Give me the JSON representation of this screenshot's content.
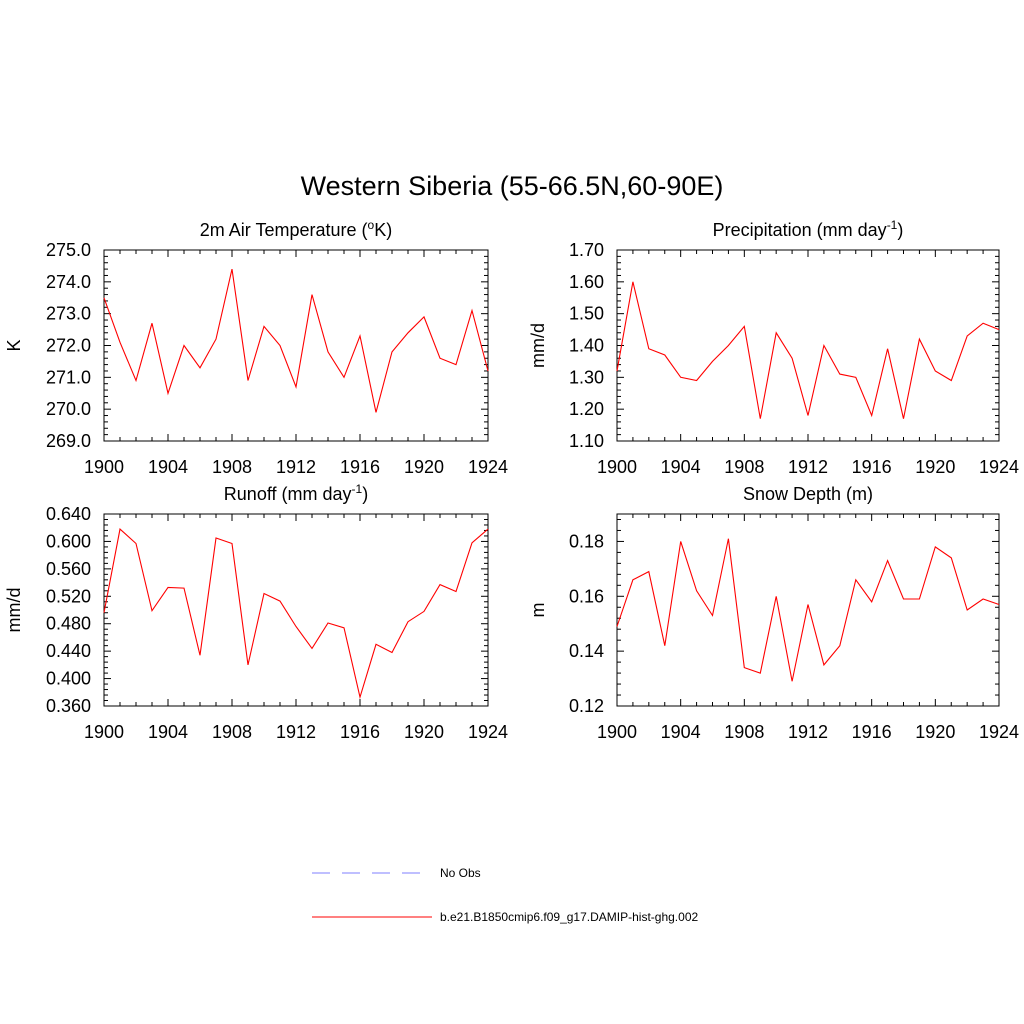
{
  "title": "Western Siberia (55-66.5N,60-90E)",
  "colors": {
    "model": "#ff0000",
    "obs": "#9999ff",
    "axis": "#000000"
  },
  "legend": {
    "obs_label": "No Obs",
    "model_label": "b.e21.B1850cmip6.f09_g17.DAMIP-hist-ghg.002"
  },
  "chart_data": [
    {
      "type": "line",
      "title_parts": [
        "2m Air Temperature (",
        "o",
        "K)"
      ],
      "ylabel": "K",
      "xlim": [
        1900,
        1924
      ],
      "ylim": [
        269.0,
        275.0
      ],
      "yticks": [
        269.0,
        270.0,
        271.0,
        272.0,
        273.0,
        274.0,
        275.0
      ],
      "yticklabels": [
        "269.0",
        "270.0",
        "271.0",
        "272.0",
        "273.0",
        "274.0",
        "275.0"
      ],
      "xticks": [
        1900,
        1904,
        1908,
        1912,
        1916,
        1920,
        1924
      ],
      "xticklabels": [
        "1900",
        "1904",
        "1908",
        "1912",
        "1916",
        "1920",
        "1924"
      ],
      "x": [
        1900,
        1901,
        1902,
        1903,
        1904,
        1905,
        1906,
        1907,
        1908,
        1909,
        1910,
        1911,
        1912,
        1913,
        1914,
        1915,
        1916,
        1917,
        1918,
        1919,
        1920,
        1921,
        1922,
        1923,
        1924
      ],
      "y": [
        273.5,
        272.1,
        270.9,
        272.7,
        270.5,
        272.0,
        271.3,
        272.2,
        274.4,
        270.9,
        272.6,
        272.0,
        270.7,
        273.6,
        271.8,
        271.0,
        272.3,
        269.9,
        271.8,
        272.4,
        272.9,
        271.6,
        271.4,
        273.1,
        271.2
      ]
    },
    {
      "type": "line",
      "title_parts": [
        "Precipitation (mm day",
        "-1",
        ")"
      ],
      "ylabel": "mm/d",
      "xlim": [
        1900,
        1924
      ],
      "ylim": [
        1.1,
        1.7
      ],
      "yticks": [
        1.1,
        1.2,
        1.3,
        1.4,
        1.5,
        1.6,
        1.7
      ],
      "yticklabels": [
        "1.10",
        "1.20",
        "1.30",
        "1.40",
        "1.50",
        "1.60",
        "1.70"
      ],
      "xticks": [
        1900,
        1904,
        1908,
        1912,
        1916,
        1920,
        1924
      ],
      "xticklabels": [
        "1900",
        "1904",
        "1908",
        "1912",
        "1916",
        "1920",
        "1924"
      ],
      "x": [
        1900,
        1901,
        1902,
        1903,
        1904,
        1905,
        1906,
        1907,
        1908,
        1909,
        1910,
        1911,
        1912,
        1913,
        1914,
        1915,
        1916,
        1917,
        1918,
        1919,
        1920,
        1921,
        1922,
        1923,
        1924
      ],
      "y": [
        1.32,
        1.6,
        1.39,
        1.37,
        1.3,
        1.29,
        1.35,
        1.4,
        1.46,
        1.17,
        1.44,
        1.36,
        1.18,
        1.4,
        1.31,
        1.3,
        1.18,
        1.39,
        1.17,
        1.42,
        1.32,
        1.29,
        1.43,
        1.47,
        1.45
      ]
    },
    {
      "type": "line",
      "title_parts": [
        "Runoff (mm day",
        "-1",
        ")"
      ],
      "ylabel": "mm/d",
      "xlim": [
        1900,
        1924
      ],
      "ylim": [
        0.36,
        0.64
      ],
      "yticks": [
        0.36,
        0.4,
        0.44,
        0.48,
        0.52,
        0.56,
        0.6,
        0.64
      ],
      "yticklabels": [
        "0.360",
        "0.400",
        "0.440",
        "0.480",
        "0.520",
        "0.560",
        "0.600",
        "0.640"
      ],
      "xticks": [
        1900,
        1904,
        1908,
        1912,
        1916,
        1920,
        1924
      ],
      "xticklabels": [
        "1900",
        "1904",
        "1908",
        "1912",
        "1916",
        "1920",
        "1924"
      ],
      "x": [
        1900,
        1901,
        1902,
        1903,
        1904,
        1905,
        1906,
        1907,
        1908,
        1909,
        1910,
        1911,
        1912,
        1913,
        1914,
        1915,
        1916,
        1917,
        1918,
        1919,
        1920,
        1921,
        1922,
        1923,
        1924
      ],
      "y": [
        0.496,
        0.618,
        0.597,
        0.499,
        0.533,
        0.532,
        0.434,
        0.605,
        0.597,
        0.42,
        0.524,
        0.513,
        0.476,
        0.444,
        0.481,
        0.474,
        0.373,
        0.45,
        0.438,
        0.483,
        0.498,
        0.537,
        0.527,
        0.598,
        0.618
      ]
    },
    {
      "type": "line",
      "title_parts": [
        "Snow Depth (m)"
      ],
      "ylabel": "m",
      "xlim": [
        1900,
        1924
      ],
      "ylim": [
        0.12,
        0.19
      ],
      "yticks": [
        0.12,
        0.14,
        0.16,
        0.18
      ],
      "yticklabels": [
        "0.12",
        "0.14",
        "0.16",
        "0.18"
      ],
      "xticks": [
        1900,
        1904,
        1908,
        1912,
        1916,
        1920,
        1924
      ],
      "xticklabels": [
        "1900",
        "1904",
        "1908",
        "1912",
        "1916",
        "1920",
        "1924"
      ],
      "x": [
        1900,
        1901,
        1902,
        1903,
        1904,
        1905,
        1906,
        1907,
        1908,
        1909,
        1910,
        1911,
        1912,
        1913,
        1914,
        1915,
        1916,
        1917,
        1918,
        1919,
        1920,
        1921,
        1922,
        1923,
        1924
      ],
      "y": [
        0.149,
        0.166,
        0.169,
        0.142,
        0.18,
        0.162,
        0.153,
        0.181,
        0.134,
        0.132,
        0.16,
        0.129,
        0.157,
        0.135,
        0.142,
        0.166,
        0.158,
        0.173,
        0.159,
        0.159,
        0.178,
        0.174,
        0.155,
        0.159,
        0.157
      ]
    }
  ]
}
